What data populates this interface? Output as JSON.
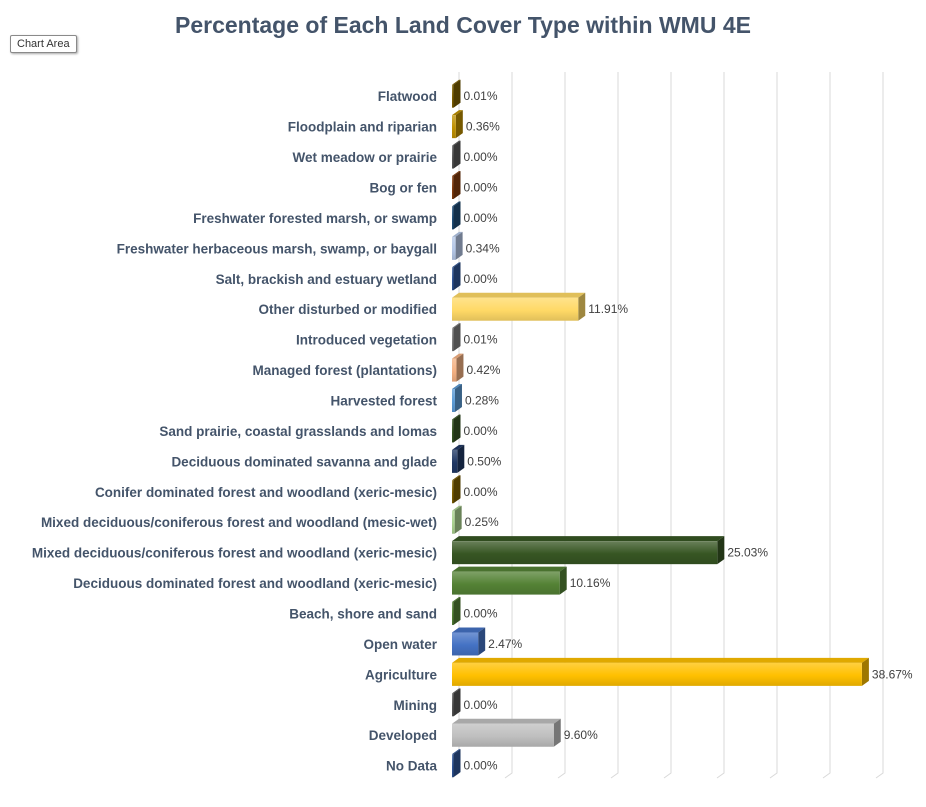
{
  "chart_data": {
    "type": "bar",
    "orientation": "horizontal",
    "title": "Percentage of Each Land Cover Type within WMU 4E",
    "xlabel": "",
    "ylabel": "",
    "xlim": [
      0,
      40
    ],
    "grid": true,
    "legend": "none",
    "value_suffix": "%",
    "categories": [
      "Flatwood",
      "Floodplain and riparian",
      "Wet meadow or prairie",
      "Bog or fen",
      "Freshwater forested  marsh, or swamp",
      "Freshwater herbaceous marsh, swamp, or baygall",
      "Salt, brackish and estuary wetland",
      "Other disturbed or modified",
      "Introduced vegetation",
      "Managed forest (plantations)",
      "Harvested forest",
      "Sand prairie, coastal grasslands and lomas",
      "Deciduous dominated savanna and glade",
      "Conifer dominated forest and woodland (xeric-mesic)",
      "Mixed deciduous/coniferous forest and woodland (mesic-wet)",
      "Mixed deciduous/coniferous forest and woodland  (xeric-mesic)",
      "Deciduous dominated forest and woodland (xeric-mesic)",
      "Beach, shore and sand",
      "Open water",
      "Agriculture",
      "Mining",
      "Developed",
      "No Data"
    ],
    "values": [
      0.01,
      0.36,
      0.0,
      0.0,
      0.0,
      0.34,
      0.0,
      11.91,
      0.01,
      0.42,
      0.28,
      0.0,
      0.5,
      0.0,
      0.25,
      25.03,
      10.16,
      0.0,
      2.47,
      38.67,
      0.0,
      9.6,
      0.0
    ],
    "value_labels": [
      "0.01%",
      "0.36%",
      "0.00%",
      "0.00%",
      "0.00%",
      "0.34%",
      "0.00%",
      "11.91%",
      "0.01%",
      "0.42%",
      "0.28%",
      "0.00%",
      "0.50%",
      "0.00%",
      "0.25%",
      "25.03%",
      "10.16%",
      "0.00%",
      "2.47%",
      "38.67%",
      "0.00%",
      "9.60%",
      "0.00%"
    ],
    "colors": [
      "#7f6000",
      "#bf9000",
      "#595959",
      "#843c0c",
      "#1f4e79",
      "#b4c7e7",
      "#2f5597",
      "#ffd966",
      "#7f7f7f",
      "#f4b183",
      "#5b9bd5",
      "#375623",
      "#203864",
      "#7f6000",
      "#a9d18e",
      "#375623",
      "#548235",
      "#548235",
      "#4472c4",
      "#ffc000",
      "#595959",
      "#bfbfbf",
      "#2f5597"
    ]
  },
  "ui": {
    "tooltip": "Chart Area"
  }
}
